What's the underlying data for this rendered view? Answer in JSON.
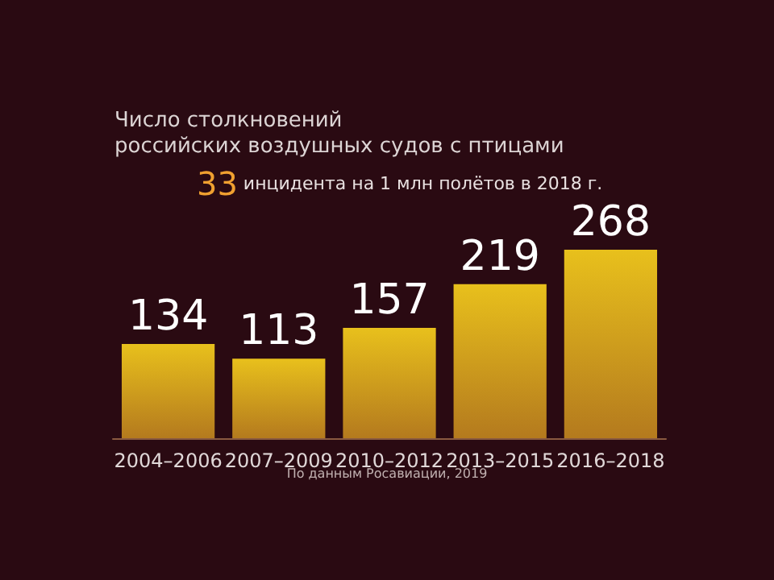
{
  "chart_data": {
    "type": "bar",
    "title": "Число столкновений\nроссийских воздушных судов с птицами",
    "categories": [
      "2004–2006",
      "2007–2009",
      "2010–2012",
      "2013–2015",
      "2016–2018"
    ],
    "values": [
      134,
      113,
      157,
      219,
      268
    ],
    "color": "#e8c01c",
    "data_labels": true,
    "tick_labels": "x",
    "annotations": [
      "33 инцидента на 1 млн полётов в 2018 г.",
      "По данным Росавиации, 2019"
    ]
  }
}
